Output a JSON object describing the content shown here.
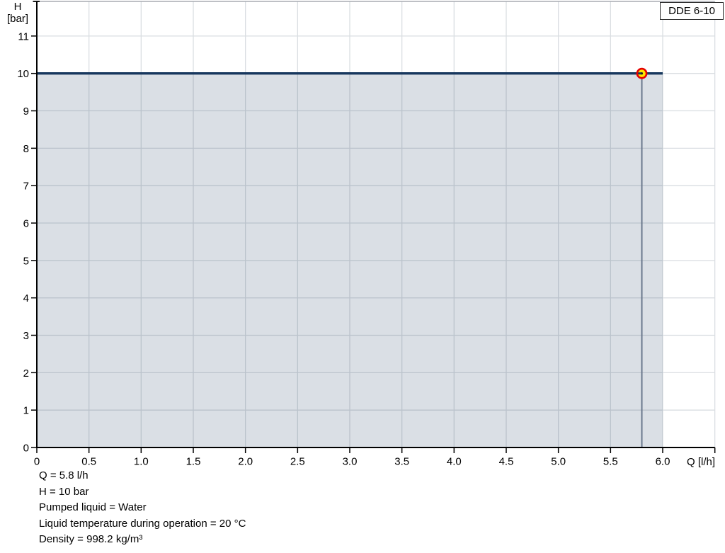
{
  "pump_label": "DDE 6-10",
  "axes": {
    "y_title_line1": "H",
    "y_title_line2": "[bar]"
  },
  "colors": {
    "curve": "#17375e",
    "area_fill": "rgba(23,55,94,0.16)",
    "grid": "#dadee2",
    "frame": "#a8acb2",
    "axis": "#000000",
    "indicator_line": "#6a788c",
    "marker_fill": "#ffe600",
    "marker_ring": "#e60000",
    "marker_center": "#222222"
  },
  "chart_data": {
    "type": "line",
    "xlabel": "Q [l/h]",
    "ylabel": "H [bar]",
    "xlim": [
      0,
      6.5
    ],
    "ylim": [
      0,
      11.9
    ],
    "grid": true,
    "x_tick_values": [
      0,
      0.5,
      1,
      1.5,
      2,
      2.5,
      3,
      3.5,
      4,
      4.5,
      5,
      5.5,
      6
    ],
    "x_tick_labels": [
      "0",
      "0.5",
      "1.0",
      "1.5",
      "2.0",
      "2.5",
      "3.0",
      "3.5",
      "4.0",
      "4.5",
      "5.0",
      "5.5",
      "6.0"
    ],
    "y_tick_values": [
      0,
      1,
      2,
      3,
      4,
      5,
      6,
      7,
      8,
      9,
      10,
      11
    ],
    "y_tick_labels": [
      "0",
      "1",
      "2",
      "3",
      "4",
      "5",
      "6",
      "7",
      "8",
      "9",
      "10",
      "11"
    ],
    "series": [
      {
        "name": "DDE 6-10",
        "x": [
          0,
          6.0
        ],
        "y": [
          10,
          10
        ],
        "area_fill_below": true
      }
    ],
    "operating_point": {
      "q": 5.8,
      "h": 10
    },
    "annotations": [
      "Q = 5.8 l/h",
      "H = 10 bar",
      "Pumped liquid = Water",
      "Liquid temperature during operation = 20 °C",
      "Density = 998.2 kg/m³"
    ]
  }
}
